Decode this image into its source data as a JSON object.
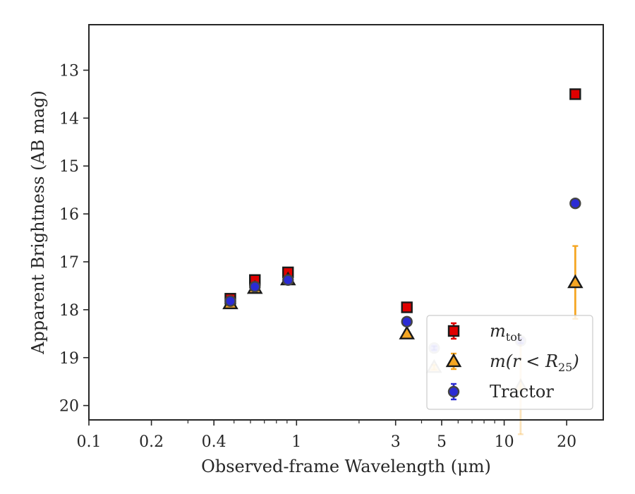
{
  "chart_data": {
    "type": "scatter",
    "xlabel": "Observed-frame Wavelength (μm)",
    "ylabel": "Apparent Brightness (AB mag)",
    "xscale": "log",
    "xlim": [
      0.1,
      30
    ],
    "ylim": [
      20.3,
      12.05
    ],
    "y_inverted": true,
    "x_ticks": [
      0.1,
      0.2,
      0.4,
      1,
      3,
      5,
      10,
      20
    ],
    "x_tick_labels": [
      "0.1",
      "0.2",
      "0.4",
      "1",
      "3",
      "5",
      "10",
      "20"
    ],
    "y_ticks": [
      13,
      14,
      15,
      16,
      17,
      18,
      19,
      20
    ],
    "y_tick_labels": [
      "13",
      "14",
      "15",
      "16",
      "17",
      "18",
      "19",
      "20"
    ],
    "legend_position": "lower-right",
    "series": [
      {
        "name": "m_tot",
        "name_main": "m",
        "name_sub": "tot",
        "marker": "square",
        "color": "#e00000",
        "edge_color": "#1a1a1a",
        "error_color": "#e00000",
        "points": [
          {
            "x": 0.48,
            "y": 17.77,
            "err": 0.03
          },
          {
            "x": 0.63,
            "y": 17.38,
            "err": 0.03
          },
          {
            "x": 0.91,
            "y": 17.22,
            "err": 0.03
          },
          {
            "x": 3.4,
            "y": 17.95,
            "err": 0.03
          },
          {
            "x": 22,
            "y": 13.5,
            "err": 0.04
          }
        ]
      },
      {
        "name": "m(r < R25)",
        "name_main": "m(r < R",
        "name_sub": "25",
        "name_tail": ")",
        "marker": "triangle",
        "color": "#f5a623",
        "edge_color": "#1a1a1a",
        "error_color": "#f5a623",
        "points": [
          {
            "x": 0.48,
            "y": 17.87,
            "err": 0.03
          },
          {
            "x": 0.63,
            "y": 17.55,
            "err": 0.03
          },
          {
            "x": 0.91,
            "y": 17.37,
            "err": 0.03
          },
          {
            "x": 3.4,
            "y": 18.5,
            "err": 0.04
          },
          {
            "x": 4.6,
            "y": 19.2,
            "err": 0.05
          },
          {
            "x": 12,
            "y": 19.6,
            "err": 1.0
          },
          {
            "x": 22,
            "y": 17.43,
            "err": 0.76
          }
        ]
      },
      {
        "name": "Tractor",
        "marker": "circle",
        "color": "#2b2bd4",
        "edge_color": "#444444",
        "error_color": "#2b2bd4",
        "points": [
          {
            "x": 0.48,
            "y": 17.82,
            "err": 0.02
          },
          {
            "x": 0.63,
            "y": 17.52,
            "err": 0.02
          },
          {
            "x": 0.91,
            "y": 17.38,
            "err": 0.02
          },
          {
            "x": 3.4,
            "y": 18.25,
            "err": 0.03
          },
          {
            "x": 4.6,
            "y": 18.8,
            "err": 0.04
          },
          {
            "x": 12,
            "y": 18.65,
            "err": 0.05
          },
          {
            "x": 22,
            "y": 15.78,
            "err": 0.06
          }
        ]
      }
    ]
  }
}
